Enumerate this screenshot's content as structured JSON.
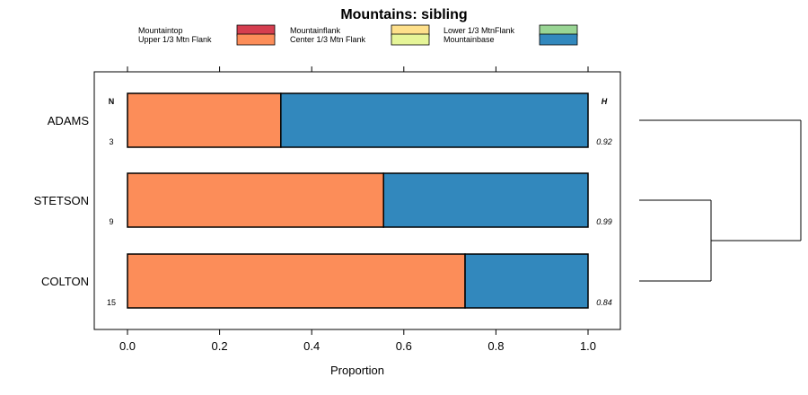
{
  "chart_data": {
    "type": "bar",
    "orientation": "horizontal",
    "stacked": true,
    "title": "Mountains: sibling",
    "xlabel": "Proportion",
    "ylabel": "",
    "xlim": [
      0,
      1
    ],
    "xticks": [
      "0.0",
      "0.2",
      "0.4",
      "0.6",
      "0.8",
      "1.0"
    ],
    "categories": [
      "ADAMS",
      "STETSON",
      "COLTON"
    ],
    "legend": [
      {
        "name": "Mountaintop",
        "color": "#d53e4f"
      },
      {
        "name": "Upper 1/3 Mtn Flank",
        "color": "#fc8d59"
      },
      {
        "name": "Mountainflank",
        "color": "#fee08b"
      },
      {
        "name": "Center 1/3 Mtn Flank",
        "color": "#e6f598"
      },
      {
        "name": "Lower 1/3 MtnFlank",
        "color": "#99d594"
      },
      {
        "name": "Mountainbase",
        "color": "#3288bd"
      }
    ],
    "series": [
      {
        "name": "Upper 1/3 Mtn Flank",
        "color": "#fc8d59",
        "values": [
          0.333,
          0.556,
          0.733
        ]
      },
      {
        "name": "Mountainbase",
        "color": "#3288bd",
        "values": [
          0.667,
          0.444,
          0.267
        ]
      }
    ],
    "n_header": "N",
    "h_header": "H",
    "n_values": [
      "3",
      "9",
      "15"
    ],
    "h_values": [
      "0.92",
      "0.99",
      "0.84"
    ],
    "dendrogram": "ADAMS joins (STETSON, COLTON)"
  }
}
